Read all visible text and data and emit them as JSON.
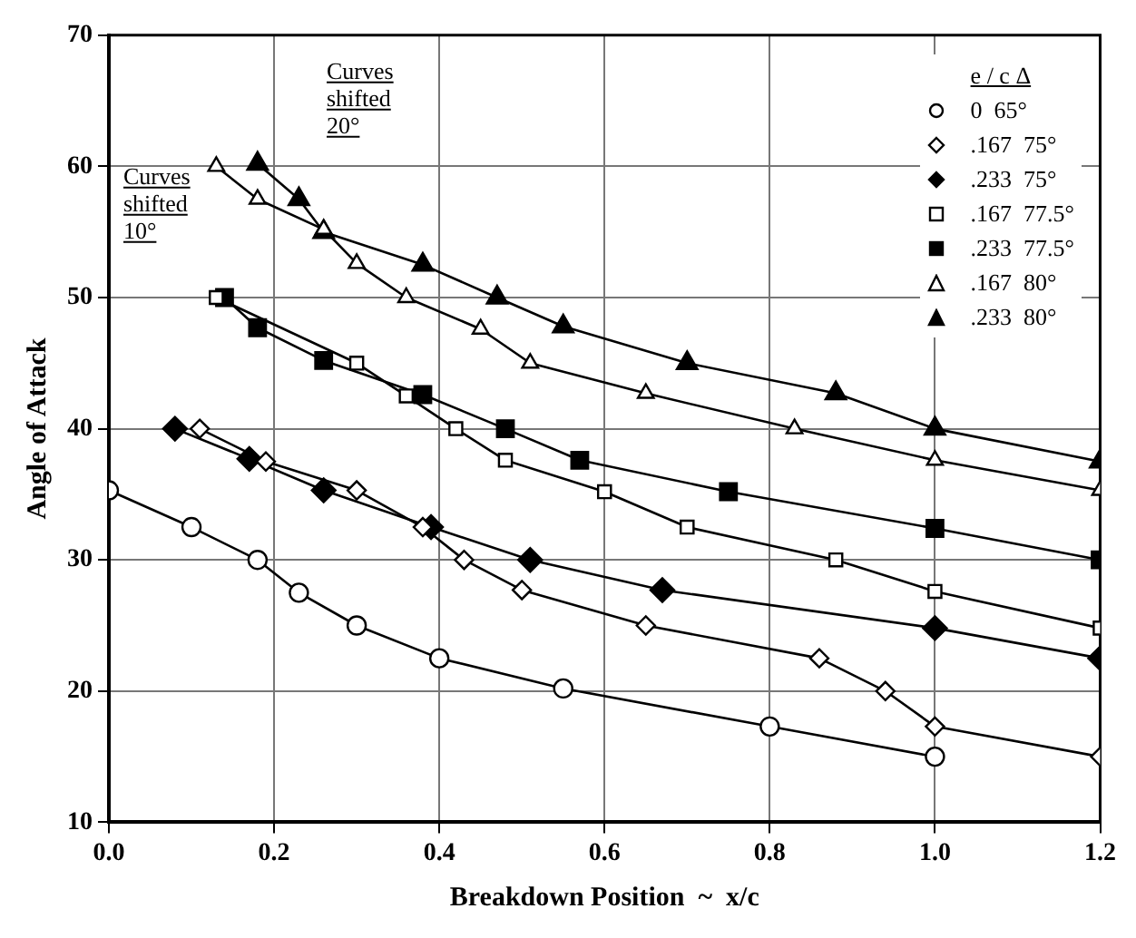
{
  "chart_data": {
    "type": "line",
    "xlabel": "Breakdown Position  ~  x/c",
    "ylabel": "Angle of Attack",
    "legend_title": "e / c  Δ",
    "legend": "top right",
    "grid": true,
    "line_style": "solid",
    "xlim": [
      0,
      1.2
    ],
    "xticks": [
      {
        "value": 0,
        "label": "0.0"
      },
      0.2,
      0.4,
      0.6,
      0.8,
      {
        "value": 1,
        "label": "1.0"
      },
      1.2
    ],
    "ylim": [
      10,
      70
    ],
    "yticks": [
      10,
      20,
      30,
      40,
      50,
      60,
      70
    ],
    "annotations": [
      "Curves shifted 20°",
      "Curves shifted 10°"
    ],
    "series": [
      {
        "name": "0  65°",
        "color": "#000000",
        "marker": "circle",
        "x": [
          0,
          0.1,
          0.18,
          0.23,
          0.3,
          0.4,
          0.55,
          0.8,
          1.0
        ],
        "values": [
          35.3,
          32.5,
          30,
          27.5,
          25,
          22.5,
          20.2,
          17.3,
          15
        ]
      },
      {
        "name": ".167  75°",
        "color": "#000000",
        "marker": "diamond",
        "x": [
          0.11,
          0.19,
          0.3,
          0.38,
          0.43,
          0.5,
          0.65,
          0.86,
          0.94,
          1.0,
          1.2
        ],
        "values": [
          40,
          37.5,
          35.3,
          32.5,
          30,
          27.7,
          25,
          22.5,
          20,
          17.3,
          15
        ]
      },
      {
        "name": ".233  75°",
        "color": "#000000",
        "marker": "diamond",
        "x": [
          0.08,
          0.17,
          0.26,
          0.39,
          0.51,
          0.67,
          1.0,
          1.2
        ],
        "values": [
          40,
          37.7,
          35.3,
          32.5,
          30,
          27.7,
          24.8,
          22.5
        ]
      },
      {
        "name": ".167  77.5°",
        "color": "#000000",
        "marker": "square",
        "x": [
          0.13,
          0.3,
          0.36,
          0.42,
          0.48,
          0.6,
          0.7,
          0.88,
          1.0,
          1.2
        ],
        "values": [
          50,
          45,
          42.5,
          40,
          37.6,
          35.2,
          32.5,
          30,
          27.6,
          24.8
        ]
      },
      {
        "name": ".233  77.5°",
        "color": "#000000",
        "marker": "square",
        "x": [
          0.14,
          0.18,
          0.26,
          0.38,
          0.48,
          0.57,
          0.75,
          1.0,
          1.2
        ],
        "values": [
          50,
          47.7,
          45.2,
          42.6,
          40,
          37.6,
          35.2,
          32.4,
          30
        ]
      },
      {
        "name": ".167  80°",
        "color": "#000000",
        "marker": "triangle",
        "x": [
          0.13,
          0.18,
          0.26,
          0.3,
          0.36,
          0.45,
          0.51,
          0.65,
          0.83,
          1.0,
          1.2
        ],
        "values": [
          60,
          57.5,
          55.2,
          52.6,
          50,
          47.6,
          45,
          42.7,
          40,
          37.6,
          35.3
        ]
      },
      {
        "name": ".233  80°",
        "color": "#000000",
        "marker": "triangle",
        "x": [
          0.18,
          0.23,
          0.26,
          0.38,
          0.47,
          0.55,
          0.7,
          0.88,
          1.0,
          1.2
        ],
        "values": [
          60.2,
          57.5,
          55,
          52.5,
          50,
          47.8,
          45,
          42.7,
          40,
          37.5
        ]
      }
    ]
  }
}
